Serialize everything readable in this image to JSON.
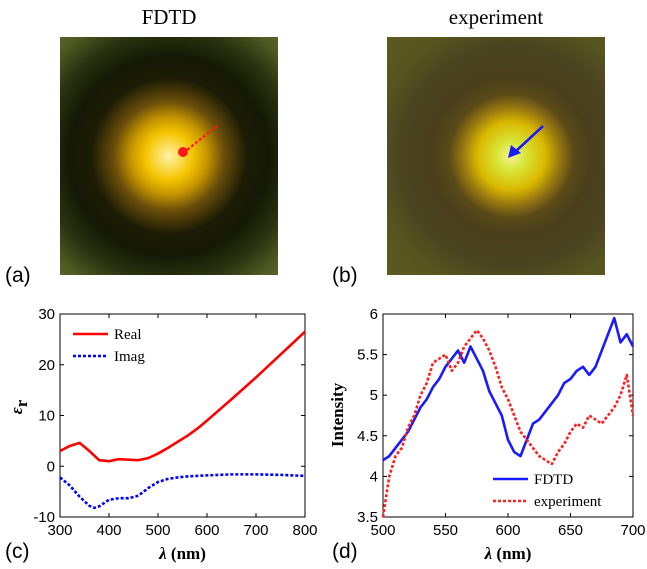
{
  "figure": {
    "panel_a": {
      "title": "FDTD",
      "letter": "(a)"
    },
    "panel_b": {
      "title": "experiment",
      "letter": "(b)"
    },
    "panel_c": {
      "letter": "(c)"
    },
    "panel_d": {
      "letter": "(d)"
    }
  },
  "colors": {
    "real": "#ff0000",
    "imag": "#0000ff",
    "fdtd_line": "#1a1aff",
    "experiment_line": "#ff2020",
    "arrow_a": "#ff1a1a",
    "arrow_b": "#1a1aff"
  },
  "chart_data": [
    {
      "type": "line",
      "panel": "(c)",
      "xlabel": "λ (nm)",
      "ylabel": "ε_r",
      "xlim": [
        300,
        800
      ],
      "ylim": [
        -10,
        30
      ],
      "xticks": [
        300,
        400,
        500,
        600,
        700,
        800
      ],
      "yticks": [
        -10,
        0,
        10,
        20,
        30
      ],
      "legend_position": "top-left",
      "series": [
        {
          "name": "Real",
          "style": "solid",
          "x": [
            300,
            320,
            340,
            360,
            380,
            400,
            420,
            440,
            460,
            480,
            500,
            520,
            540,
            560,
            580,
            600,
            650,
            700,
            750,
            800
          ],
          "y": [
            3.0,
            4.0,
            4.6,
            3.0,
            1.2,
            1.0,
            1.4,
            1.3,
            1.2,
            1.6,
            2.5,
            3.6,
            4.8,
            6.0,
            7.4,
            9.0,
            13.2,
            17.5,
            22.0,
            26.5
          ]
        },
        {
          "name": "Imag",
          "style": "dotted",
          "x": [
            300,
            320,
            340,
            360,
            370,
            380,
            400,
            420,
            440,
            460,
            480,
            500,
            520,
            540,
            560,
            600,
            650,
            700,
            750,
            800
          ],
          "y": [
            -2.2,
            -3.8,
            -6.0,
            -7.8,
            -8.2,
            -7.9,
            -6.6,
            -6.3,
            -6.3,
            -5.8,
            -4.3,
            -3.1,
            -2.5,
            -2.2,
            -2.0,
            -1.8,
            -1.6,
            -1.6,
            -1.7,
            -1.9
          ]
        }
      ]
    },
    {
      "type": "line",
      "panel": "(d)",
      "xlabel": "λ (nm)",
      "ylabel": "Intensity",
      "xlim": [
        500,
        700
      ],
      "ylim": [
        3.5,
        6
      ],
      "xticks": [
        500,
        550,
        600,
        650,
        700
      ],
      "yticks": [
        3.5,
        4,
        4.5,
        5,
        5.5,
        6
      ],
      "legend_position": "bottom-right",
      "series": [
        {
          "name": "FDTD",
          "style": "solid",
          "x": [
            500,
            505,
            510,
            515,
            520,
            525,
            530,
            535,
            540,
            545,
            550,
            555,
            560,
            565,
            570,
            575,
            580,
            585,
            590,
            595,
            600,
            605,
            610,
            615,
            620,
            625,
            630,
            635,
            640,
            645,
            650,
            655,
            660,
            665,
            670,
            675,
            680,
            685,
            690,
            695,
            700
          ],
          "y": [
            4.2,
            4.25,
            4.35,
            4.45,
            4.55,
            4.7,
            4.85,
            4.95,
            5.1,
            5.2,
            5.35,
            5.45,
            5.55,
            5.4,
            5.6,
            5.45,
            5.3,
            5.05,
            4.9,
            4.75,
            4.45,
            4.3,
            4.25,
            4.45,
            4.65,
            4.7,
            4.8,
            4.9,
            5.0,
            5.15,
            5.2,
            5.3,
            5.35,
            5.25,
            5.35,
            5.55,
            5.75,
            5.95,
            5.65,
            5.75,
            5.6
          ]
        },
        {
          "name": "experiment",
          "style": "dotted",
          "x": [
            500,
            505,
            510,
            515,
            520,
            525,
            530,
            535,
            540,
            545,
            550,
            555,
            560,
            565,
            570,
            575,
            580,
            585,
            590,
            595,
            600,
            605,
            610,
            615,
            620,
            625,
            630,
            635,
            640,
            645,
            650,
            655,
            660,
            665,
            670,
            675,
            680,
            685,
            690,
            695,
            700
          ],
          "y": [
            3.5,
            4.0,
            4.25,
            4.35,
            4.6,
            4.75,
            5.0,
            5.15,
            5.4,
            5.45,
            5.5,
            5.3,
            5.4,
            5.6,
            5.7,
            5.8,
            5.7,
            5.55,
            5.35,
            5.1,
            4.95,
            4.75,
            4.55,
            4.45,
            4.35,
            4.25,
            4.2,
            4.15,
            4.3,
            4.4,
            4.55,
            4.65,
            4.6,
            4.75,
            4.7,
            4.65,
            4.75,
            4.85,
            5.0,
            5.25,
            4.75
          ]
        }
      ]
    }
  ]
}
